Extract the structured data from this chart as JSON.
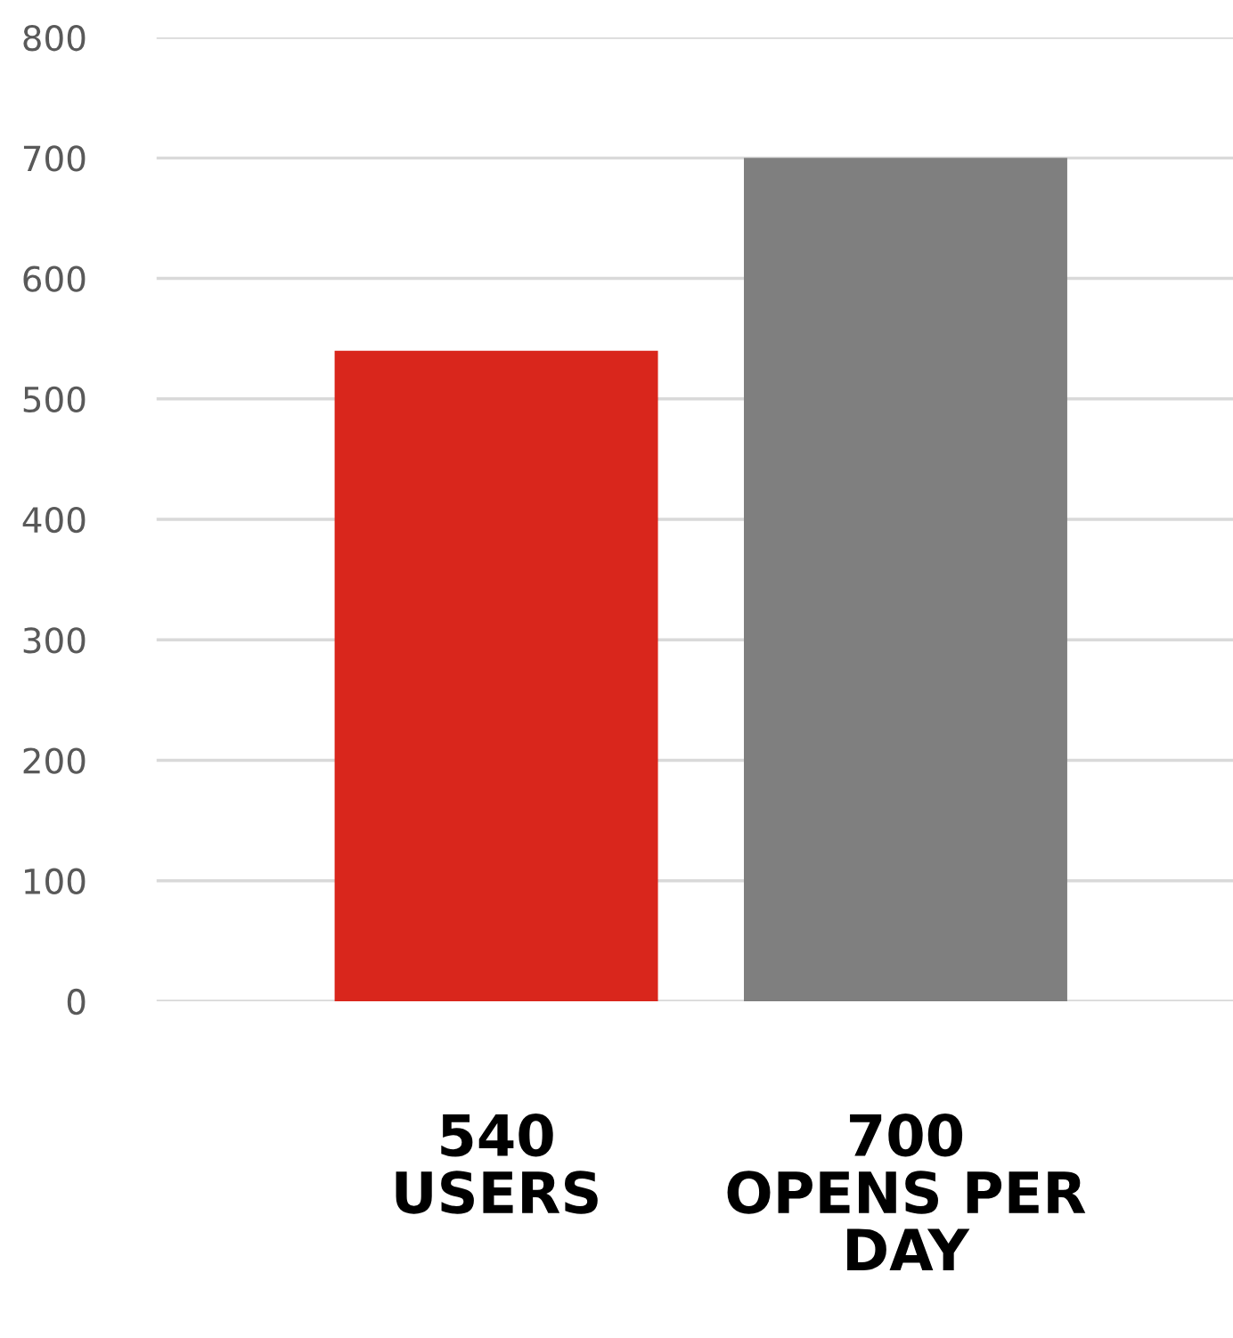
{
  "chart_data": {
    "type": "bar",
    "categories": [
      "540\nUSERS",
      "700\nOPENS PER\nDAY"
    ],
    "values": [
      540,
      700
    ],
    "colors": [
      "#d9261c",
      "#7f7f7f"
    ],
    "ylim": [
      0,
      800
    ],
    "yticks": [
      0,
      100,
      200,
      300,
      400,
      500,
      600,
      700,
      800
    ],
    "grid": "y"
  }
}
